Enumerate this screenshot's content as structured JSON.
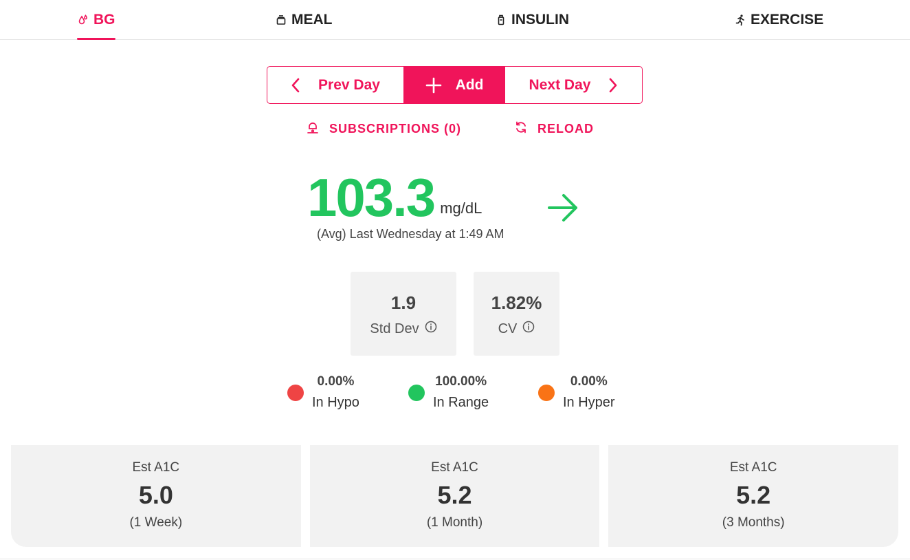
{
  "tabs": [
    {
      "label": "BG",
      "icon": "drops-icon",
      "active": true
    },
    {
      "label": "MEAL",
      "icon": "meal-icon",
      "active": false
    },
    {
      "label": "INSULIN",
      "icon": "insulin-icon",
      "active": false
    },
    {
      "label": "EXERCISE",
      "icon": "running-icon",
      "active": false
    }
  ],
  "daynav": {
    "prev_label": "Prev Day",
    "add_label": "Add",
    "next_label": "Next Day"
  },
  "links": {
    "subscriptions_label": "SUBSCRIPTIONS (0)",
    "reload_label": "RELOAD"
  },
  "reading": {
    "value": "103.3",
    "unit": "mg/dL",
    "subtitle": "(Avg) Last Wednesday at 1:49 AM",
    "trend": "steady"
  },
  "stats": [
    {
      "value": "1.9",
      "label": "Std Dev"
    },
    {
      "value": "1.82%",
      "label": "CV"
    }
  ],
  "ranges": [
    {
      "pct": "0.00%",
      "label": "In Hypo",
      "color": "#ef4444"
    },
    {
      "pct": "100.00%",
      "label": "In Range",
      "color": "#22c55e"
    },
    {
      "pct": "0.00%",
      "label": "In Hyper",
      "color": "#f97316"
    }
  ],
  "a1c": [
    {
      "label": "Est A1C",
      "value": "5.0",
      "period": "(1 Week)"
    },
    {
      "label": "Est A1C",
      "value": "5.2",
      "period": "(1 Month)"
    },
    {
      "label": "Est A1C",
      "value": "5.2",
      "period": "(3 Months)"
    }
  ],
  "colors": {
    "accent": "#f0145a",
    "good": "#22c55e",
    "card_bg": "#f2f2f2"
  }
}
